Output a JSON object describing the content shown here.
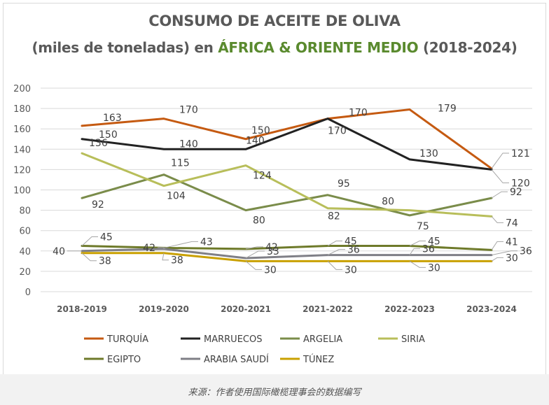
{
  "title_line1": "CONSUMO DE ACEITE DE OLIVA",
  "title_line2_pre": "(miles de toneladas) en ",
  "title_line2_region": "ÁFRICA & ORIENTE MEDIO",
  "title_line2_post": " (2018-2024)",
  "source": "来源：作者使用国际橄榄理事会的数据编写",
  "chart_data": {
    "type": "line",
    "categories": [
      "2018-2019",
      "2019-2020",
      "2020-2021",
      "2021-2022",
      "2022-2023",
      "2023-2024"
    ],
    "ylim": [
      0,
      200
    ],
    "yticks": [
      0,
      20,
      40,
      60,
      80,
      100,
      120,
      140,
      160,
      180,
      200
    ],
    "grid": true,
    "legend_position": "bottom",
    "series": [
      {
        "name": "TURQUÍA",
        "color": "#c55a11",
        "values": [
          163,
          170,
          150,
          170,
          179,
          121
        ]
      },
      {
        "name": "MARRUECOS",
        "color": "#222222",
        "values": [
          150,
          140,
          140,
          170,
          130,
          120
        ]
      },
      {
        "name": "ARGELIA",
        "color": "#7a8c4a",
        "values": [
          92,
          115,
          80,
          95,
          75,
          92
        ]
      },
      {
        "name": "SIRIA",
        "color": "#b8be5a",
        "values": [
          136,
          104,
          124,
          82,
          80,
          74
        ]
      },
      {
        "name": "EGIPTO",
        "color": "#6e7a2a",
        "values": [
          45,
          43,
          42,
          45,
          45,
          41
        ]
      },
      {
        "name": "ARABIA SAUDÍ",
        "color": "#7f7f86",
        "values": [
          40,
          42,
          33,
          36,
          36,
          36
        ]
      },
      {
        "name": "TÚNEZ",
        "color": "#c9a000",
        "values": [
          38,
          38,
          30,
          30,
          30,
          30
        ]
      }
    ]
  }
}
